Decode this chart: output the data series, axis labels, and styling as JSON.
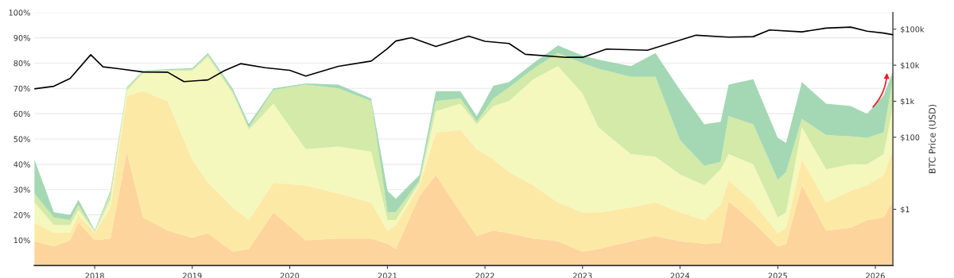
{
  "chart_data": {
    "type": "area",
    "stacked": true,
    "y2label": "BTC Price (USD)",
    "log": "y2",
    "grid": "y",
    "x": [
      "2017-05-20",
      "2017-08",
      "2017-10",
      "2017-11",
      "2018-01",
      "2018-03",
      "2018-05",
      "2018-07",
      "2018-10",
      "2019-01",
      "2019-03",
      "2019-06",
      "2019-08",
      "2019-11",
      "2020-03",
      "2020-07",
      "2020-11",
      "2021-01",
      "2021-02",
      "2021-05",
      "2021-07",
      "2021-10",
      "2021-12",
      "2022-02",
      "2022-04",
      "2022-07",
      "2022-10",
      "2023-01",
      "2023-03",
      "2023-07",
      "2023-10",
      "2024-01",
      "2024-04",
      "2024-06",
      "2024-07",
      "2024-10",
      "2025-01",
      "2025-02",
      "2025-04",
      "2025-07",
      "2025-10",
      "2025-12",
      "2026-02",
      "2026-03-08"
    ],
    "xlim": [
      "2017-05-20",
      "2026-03-08"
    ],
    "xticks": [
      {
        "value": "2018-01-01",
        "label": "2018"
      },
      {
        "value": "2019-01-01",
        "label": "2019"
      },
      {
        "value": "2020-01-01",
        "label": "2020"
      },
      {
        "value": "2021-01-01",
        "label": "2021"
      },
      {
        "value": "2022-01-01",
        "label": "2022"
      },
      {
        "value": "2023-01-01",
        "label": "2023"
      },
      {
        "value": "2024-01-01",
        "label": "2024"
      },
      {
        "value": "2025-01-01",
        "label": "2025"
      },
      {
        "value": "2026-01-01",
        "label": "2026"
      }
    ],
    "ylim": [
      0,
      100
    ],
    "yticks": [
      {
        "value": 10,
        "label": "10%"
      },
      {
        "value": 20,
        "label": "20%"
      },
      {
        "value": 30,
        "label": "30%"
      },
      {
        "value": 40,
        "label": "40%"
      },
      {
        "value": 50,
        "label": "50%"
      },
      {
        "value": 60,
        "label": "60%"
      },
      {
        "value": 70,
        "label": "70%"
      },
      {
        "value": 80,
        "label": "80%"
      },
      {
        "value": 90,
        "label": "90%"
      },
      {
        "value": 100,
        "label": "100%"
      }
    ],
    "y2lim": [
      0.0275,
      290000
    ],
    "y2ticks": [
      {
        "value": 1,
        "label": "$1"
      },
      {
        "value": 100,
        "label": "$100"
      },
      {
        "value": 1000,
        "label": "$1k"
      },
      {
        "value": 10000,
        "label": "$10k"
      },
      {
        "value": 100000,
        "label": "$100k"
      }
    ],
    "series": [
      {
        "color": "#fdd49c",
        "values": [
          9.6,
          7.5,
          10,
          17,
          10,
          10.7,
          45,
          19,
          13.8,
          11,
          12.8,
          5.5,
          6.5,
          21,
          10,
          10.7,
          10.7,
          8.6,
          6.5,
          27.5,
          35.8,
          21,
          11.7,
          13.8,
          12.8,
          10.7,
          9.6,
          5.5,
          6.5,
          9.6,
          11.7,
          9.6,
          8.6,
          9,
          25.4,
          17,
          7.5,
          8.5,
          31.7,
          13.8,
          14.9,
          18,
          19,
          25.4
        ]
      },
      {
        "color": "#fde9a6",
        "values": [
          7.4,
          5.5,
          3,
          3,
          3,
          12.3,
          22,
          50,
          51.2,
          31,
          19.9,
          17.5,
          11.5,
          11.7,
          21.6,
          17.8,
          14.3,
          5.2,
          9.5,
          4.2,
          16.8,
          32.7,
          34.3,
          28.2,
          24.2,
          21,
          15.4,
          15.5,
          14.5,
          13.4,
          13.3,
          11.4,
          9.4,
          15,
          8.4,
          8,
          5.3,
          6.4,
          10.3,
          11.2,
          14.7,
          13.7,
          16.8,
          20.6
        ]
      },
      {
        "color": "#f4f8bd",
        "values": [
          8,
          3,
          3,
          2,
          0.3,
          3,
          2,
          7,
          12,
          35,
          49.8,
          45,
          35.7,
          31.3,
          14.4,
          18.5,
          20,
          4.2,
          2,
          1,
          8.4,
          10.3,
          9.8,
          21,
          28,
          41.9,
          53.8,
          47,
          33.7,
          21,
          18,
          15,
          13.7,
          14,
          10.2,
          15,
          6.2,
          6.1,
          12.7,
          13,
          10.4,
          8.3,
          8.2,
          17
        ]
      },
      {
        "color": "#d3eaa8",
        "values": [
          3.5,
          3,
          2,
          2,
          0.3,
          2.5,
          1,
          0.5,
          0.3,
          0.5,
          0.8,
          1,
          0.8,
          5.4,
          25.5,
          23,
          20,
          3,
          3,
          1,
          4,
          2,
          1,
          3,
          5.4,
          4.2,
          5.2,
          12,
          23.1,
          30.6,
          31.6,
          13.5,
          7.7,
          3,
          15,
          15.8,
          14.8,
          16,
          3.2,
          13.6,
          11,
          10.5,
          8.6,
          10.6
        ]
      },
      {
        "color": "#a4d8b4",
        "values": [
          13.5,
          2,
          2,
          2,
          0.4,
          1.1,
          0.5,
          0.5,
          0.3,
          0.5,
          0.7,
          1,
          1.5,
          0.6,
          0.5,
          1.5,
          1,
          8.6,
          5.4,
          2.1,
          3.9,
          2.9,
          2.2,
          5,
          2.1,
          2.2,
          3,
          3,
          3.6,
          4.2,
          9.4,
          19.9,
          16.4,
          15.8,
          12.5,
          17.8,
          16.7,
          11.4,
          14.6,
          12.4,
          12,
          9.5,
          14.7,
          3.1
        ]
      },
      {
        "type": "line",
        "axis": "y2",
        "color": "#000000",
        "x": [
          "2017-05-20",
          "2017-08",
          "2017-10",
          "2017-12-17",
          "2018-02",
          "2018-04",
          "2018-07",
          "2018-10",
          "2018-12",
          "2019-03",
          "2019-05",
          "2019-07",
          "2019-10",
          "2020-01",
          "2020-03",
          "2020-07",
          "2020-11",
          "2021-01",
          "2021-02",
          "2021-04",
          "2021-07",
          "2021-11",
          "2022-01",
          "2022-04",
          "2022-06",
          "2022-11",
          "2023-01",
          "2023-04",
          "2023-09",
          "2023-12",
          "2024-03",
          "2024-07",
          "2024-10",
          "2024-12",
          "2025-04",
          "2025-07",
          "2025-10",
          "2025-12",
          "2026-02",
          "2026-03-08"
        ],
        "values": [
          2200,
          2600,
          4300,
          19500,
          9000,
          8000,
          6500,
          6400,
          3500,
          3900,
          7000,
          11000,
          8500,
          7200,
          5000,
          9300,
          13000,
          29000,
          47000,
          58000,
          33000,
          64000,
          46000,
          40000,
          20000,
          16500,
          16500,
          28000,
          26000,
          42000,
          68000,
          60000,
          62000,
          95000,
          84000,
          107000,
          114000,
          88000,
          78000,
          70000
        ]
      }
    ]
  }
}
